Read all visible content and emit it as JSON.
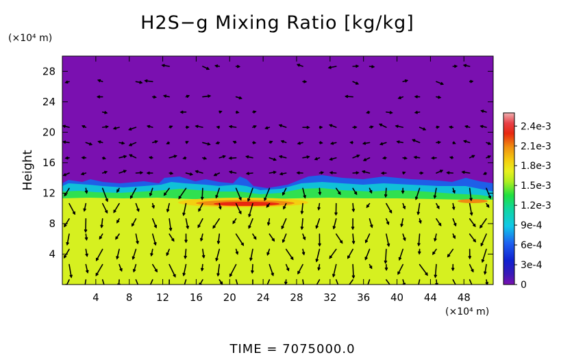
{
  "chart_data": {
    "type": "heatmap",
    "title": "H2S−g Mixing Ratio [kg/kg]",
    "ylabel": "Height",
    "y_unit_label": "(×10⁴ m)",
    "x_unit_label": "(×10⁴ m)",
    "x_ticks": [
      "4",
      "8",
      "12",
      "16",
      "20",
      "24",
      "28",
      "32",
      "36",
      "40",
      "44",
      "48"
    ],
    "y_ticks": [
      "4",
      "8",
      "12",
      "16",
      "20",
      "24",
      "28"
    ],
    "xlim": [
      0,
      51.5
    ],
    "ylim": [
      0,
      30
    ],
    "colorbar": {
      "min": 0,
      "max": 0.0026,
      "tick_labels": [
        "0",
        "3e-4",
        "6e-4",
        "9e-4",
        "1.2e-3",
        "1.5e-3",
        "1.8e-3",
        "2.1e-3",
        "2.4e-3"
      ],
      "tick_values": [
        0,
        0.0003,
        0.0006,
        0.0009,
        0.0012,
        0.0015,
        0.0018,
        0.0021,
        0.0024
      ]
    },
    "field_summary": {
      "lower_layer_value": 0.00165,
      "lower_layer_top": 11,
      "upper_layer_value": 0,
      "transition_top": 14,
      "max_band_height": 10.5,
      "max_band_x_range": [
        17,
        30
      ]
    },
    "footer": "TIME = 7075000.0"
  }
}
